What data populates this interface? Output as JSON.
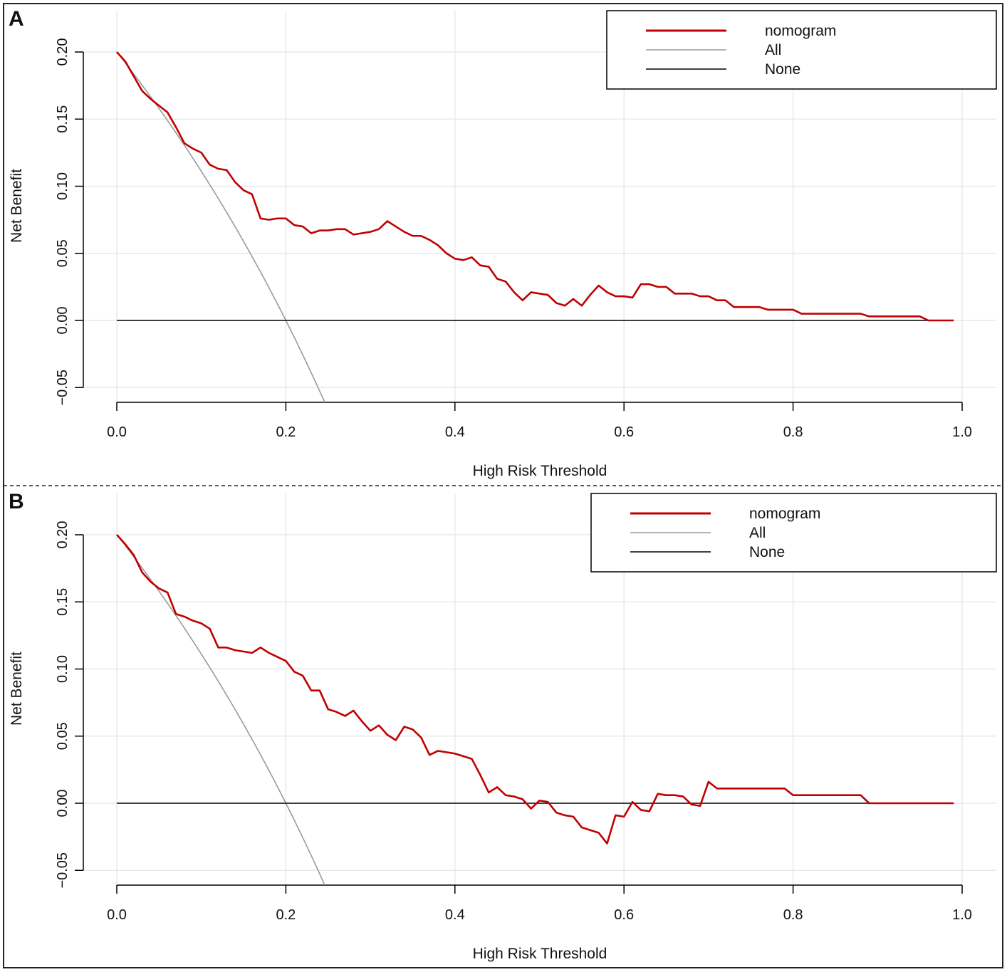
{
  "chart_data": [
    {
      "type": "line",
      "panel": "A",
      "xlabel": "High Risk Threshold",
      "ylabel": "Net Benefit",
      "xlim": [
        0,
        1
      ],
      "ylim": [
        -0.06,
        0.2
      ],
      "x_ticks": [
        "0.0",
        "0.2",
        "0.4",
        "0.6",
        "0.8",
        "1.0"
      ],
      "y_ticks": [
        "−0.05",
        "0.00",
        "0.05",
        "0.10",
        "0.15",
        "0.20"
      ],
      "grid": true,
      "legend_position": "top-right",
      "prevalence": 0.2,
      "series": [
        {
          "name": "nomogram",
          "color": "#c00000",
          "x": [
            0,
            0.01,
            0.02,
            0.03,
            0.04,
            0.05,
            0.06,
            0.07,
            0.08,
            0.09,
            0.1,
            0.11,
            0.12,
            0.13,
            0.14,
            0.15,
            0.16,
            0.17,
            0.18,
            0.19,
            0.2,
            0.21,
            0.22,
            0.23,
            0.24,
            0.25,
            0.26,
            0.27,
            0.28,
            0.29,
            0.3,
            0.31,
            0.32,
            0.33,
            0.34,
            0.35,
            0.36,
            0.37,
            0.38,
            0.39,
            0.4,
            0.41,
            0.42,
            0.43,
            0.44,
            0.45,
            0.46,
            0.47,
            0.48,
            0.49,
            0.5,
            0.51,
            0.52,
            0.53,
            0.54,
            0.55,
            0.56,
            0.57,
            0.58,
            0.59,
            0.6,
            0.61,
            0.62,
            0.63,
            0.64,
            0.65,
            0.66,
            0.67,
            0.68,
            0.69,
            0.7,
            0.71,
            0.72,
            0.73,
            0.74,
            0.75,
            0.76,
            0.77,
            0.78,
            0.79,
            0.8,
            0.81,
            0.82,
            0.83,
            0.84,
            0.85,
            0.86,
            0.87,
            0.88,
            0.89,
            0.9,
            0.91,
            0.92,
            0.93,
            0.94,
            0.95,
            0.96,
            0.97,
            0.98,
            0.99
          ],
          "y": [
            0.2,
            0.193,
            0.182,
            0.171,
            0.165,
            0.16,
            0.155,
            0.144,
            0.132,
            0.128,
            0.125,
            0.116,
            0.113,
            0.112,
            0.103,
            0.097,
            0.094,
            0.076,
            0.075,
            0.076,
            0.076,
            0.071,
            0.07,
            0.065,
            0.067,
            0.067,
            0.068,
            0.068,
            0.064,
            0.065,
            0.066,
            0.068,
            0.074,
            0.07,
            0.066,
            0.063,
            0.063,
            0.06,
            0.056,
            0.05,
            0.046,
            0.045,
            0.047,
            0.041,
            0.04,
            0.031,
            0.029,
            0.021,
            0.015,
            0.021,
            0.02,
            0.019,
            0.013,
            0.011,
            0.016,
            0.011,
            0.019,
            0.026,
            0.021,
            0.018,
            0.018,
            0.017,
            0.027,
            0.027,
            0.025,
            0.025,
            0.02,
            0.02,
            0.02,
            0.018,
            0.018,
            0.015,
            0.015,
            0.01,
            0.01,
            0.01,
            0.01,
            0.008,
            0.008,
            0.008,
            0.008,
            0.005,
            0.005,
            0.005,
            0.005,
            0.005,
            0.005,
            0.005,
            0.005,
            0.003,
            0.003,
            0.003,
            0.003,
            0.003,
            0.003,
            0.003,
            0.0,
            0.0,
            0.0,
            0.0
          ]
        },
        {
          "name": "All",
          "color": "#9a9a9a",
          "formula": "p - (1-p)*t/(1-t)"
        },
        {
          "name": "None",
          "color": "#000000",
          "constant": 0
        }
      ]
    },
    {
      "type": "line",
      "panel": "B",
      "xlabel": "High Risk Threshold",
      "ylabel": "Net Benefit",
      "xlim": [
        0,
        1
      ],
      "ylim": [
        -0.06,
        0.2
      ],
      "x_ticks": [
        "0.0",
        "0.2",
        "0.4",
        "0.6",
        "0.8",
        "1.0"
      ],
      "y_ticks": [
        "−0.05",
        "0.00",
        "0.05",
        "0.10",
        "0.15",
        "0.20"
      ],
      "grid": true,
      "legend_position": "top-right",
      "prevalence": 0.2,
      "series": [
        {
          "name": "nomogram",
          "color": "#c00000",
          "x": [
            0,
            0.01,
            0.02,
            0.03,
            0.04,
            0.05,
            0.06,
            0.07,
            0.08,
            0.09,
            0.1,
            0.11,
            0.12,
            0.13,
            0.14,
            0.15,
            0.16,
            0.17,
            0.18,
            0.19,
            0.2,
            0.21,
            0.22,
            0.23,
            0.24,
            0.25,
            0.26,
            0.27,
            0.28,
            0.29,
            0.3,
            0.31,
            0.32,
            0.33,
            0.34,
            0.35,
            0.36,
            0.37,
            0.38,
            0.39,
            0.4,
            0.41,
            0.42,
            0.43,
            0.44,
            0.45,
            0.46,
            0.47,
            0.48,
            0.49,
            0.5,
            0.51,
            0.52,
            0.53,
            0.54,
            0.55,
            0.56,
            0.57,
            0.58,
            0.59,
            0.6,
            0.61,
            0.62,
            0.63,
            0.64,
            0.65,
            0.66,
            0.67,
            0.68,
            0.69,
            0.7,
            0.71,
            0.72,
            0.73,
            0.74,
            0.75,
            0.76,
            0.77,
            0.78,
            0.79,
            0.8,
            0.81,
            0.82,
            0.83,
            0.84,
            0.85,
            0.86,
            0.87,
            0.88,
            0.89,
            0.9,
            0.91,
            0.92,
            0.93,
            0.94,
            0.95,
            0.96,
            0.97,
            0.98,
            0.99
          ],
          "y": [
            0.2,
            0.193,
            0.185,
            0.172,
            0.165,
            0.16,
            0.157,
            0.141,
            0.139,
            0.136,
            0.134,
            0.13,
            0.116,
            0.116,
            0.114,
            0.113,
            0.112,
            0.116,
            0.112,
            0.109,
            0.106,
            0.098,
            0.095,
            0.084,
            0.084,
            0.07,
            0.068,
            0.065,
            0.069,
            0.061,
            0.054,
            0.058,
            0.051,
            0.047,
            0.057,
            0.055,
            0.049,
            0.036,
            0.039,
            0.038,
            0.037,
            0.035,
            0.033,
            0.021,
            0.008,
            0.012,
            0.006,
            0.005,
            0.003,
            -0.004,
            0.002,
            0.001,
            -0.007,
            -0.009,
            -0.01,
            -0.018,
            -0.02,
            -0.022,
            -0.03,
            -0.009,
            -0.01,
            0.001,
            -0.005,
            -0.006,
            0.007,
            0.006,
            0.006,
            0.005,
            -0.001,
            -0.002,
            0.016,
            0.011,
            0.011,
            0.011,
            0.011,
            0.011,
            0.011,
            0.011,
            0.011,
            0.011,
            0.006,
            0.006,
            0.006,
            0.006,
            0.006,
            0.006,
            0.006,
            0.006,
            0.006,
            0.0,
            0.0,
            0.0,
            0.0,
            0.0,
            0.0,
            0.0,
            0.0,
            0.0,
            0.0,
            0.0
          ]
        },
        {
          "name": "All",
          "color": "#9a9a9a",
          "formula": "p - (1-p)*t/(1-t)"
        },
        {
          "name": "None",
          "color": "#000000",
          "constant": 0
        }
      ]
    }
  ]
}
